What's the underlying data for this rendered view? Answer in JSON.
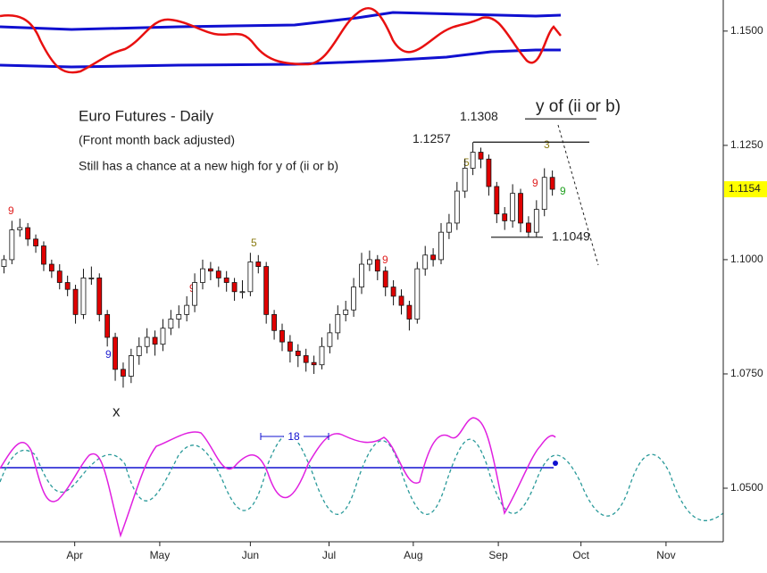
{
  "chart_data": {
    "type": "candlestick",
    "title": "Euro Futures - Daily",
    "subtitle": "(Front month back adjusted)",
    "note": "Still has a chance at a new high for y of (ii or b)",
    "wave_labels": [
      "y of (ii or b)",
      "x"
    ],
    "counts": [
      "9",
      "5",
      "9",
      "9",
      "9",
      "5",
      "3",
      "9",
      "9"
    ],
    "cycle_label": "18",
    "levels": [
      1.1308,
      1.1257,
      1.1049
    ],
    "last_price": 1.1154,
    "ylim": [
      1.0377,
      1.1568
    ],
    "yticks": [
      {
        "value": 1.05,
        "label": "1.0500"
      },
      {
        "value": 1.075,
        "label": "1.0750"
      },
      {
        "value": 1.1,
        "label": "1.1000"
      },
      {
        "value": 1.125,
        "label": "1.1250"
      },
      {
        "value": 1.15,
        "label": "1.1500"
      }
    ],
    "xlim": [
      -0.5,
      90.5
    ],
    "xticks": [
      {
        "value": 8.9,
        "label": "Apr"
      },
      {
        "value": 19.6,
        "label": "May"
      },
      {
        "value": 31,
        "label": "Jun"
      },
      {
        "value": 40.9,
        "label": "Jul"
      },
      {
        "value": 51.5,
        "label": "Aug"
      },
      {
        "value": 62.2,
        "label": "Sep"
      },
      {
        "value": 72.6,
        "label": "Oct"
      },
      {
        "value": 83.3,
        "label": "Nov"
      }
    ],
    "up_color": "#ffffff",
    "down_color": "#e00000",
    "candles": [
      [
        1.0985,
        1.101,
        1.097,
        1.1
      ],
      [
        1.1,
        1.1085,
        1.099,
        1.1065
      ],
      [
        1.1065,
        1.109,
        1.105,
        1.107
      ],
      [
        1.107,
        1.108,
        1.103,
        1.1045
      ],
      [
        1.1045,
        1.1055,
        1.1015,
        1.103
      ],
      [
        1.103,
        1.104,
        1.0975,
        1.099
      ],
      [
        1.099,
        1.1,
        1.096,
        1.0975
      ],
      [
        1.0975,
        1.099,
        1.0935,
        1.095
      ],
      [
        1.095,
        1.0965,
        1.092,
        1.0935
      ],
      [
        1.0935,
        1.0945,
        1.086,
        1.088
      ],
      [
        1.088,
        1.098,
        1.087,
        1.096
      ],
      [
        1.096,
        1.0985,
        1.0945,
        1.096
      ],
      [
        1.096,
        1.097,
        1.0865,
        1.088
      ],
      [
        1.088,
        1.089,
        1.081,
        1.083
      ],
      [
        1.083,
        1.084,
        1.0735,
        1.076
      ],
      [
        1.076,
        1.0775,
        1.072,
        1.0745
      ],
      [
        1.0745,
        1.0805,
        1.073,
        1.079
      ],
      [
        1.079,
        1.083,
        1.077,
        1.081
      ],
      [
        1.081,
        1.085,
        1.0795,
        1.083
      ],
      [
        1.083,
        1.0845,
        1.079,
        1.0815
      ],
      [
        1.0815,
        1.087,
        1.08,
        1.085
      ],
      [
        1.085,
        1.089,
        1.0835,
        1.087
      ],
      [
        1.087,
        1.09,
        1.085,
        1.088
      ],
      [
        1.088,
        1.092,
        1.0865,
        1.09
      ],
      [
        1.09,
        1.097,
        1.0885,
        1.095
      ],
      [
        1.095,
        1.1,
        1.0935,
        1.098
      ],
      [
        1.098,
        1.0995,
        1.0955,
        1.0975
      ],
      [
        1.0975,
        1.0985,
        1.094,
        1.096
      ],
      [
        1.096,
        1.0975,
        1.093,
        1.095
      ],
      [
        1.095,
        1.096,
        1.091,
        1.093
      ],
      [
        1.093,
        1.0955,
        1.0915,
        1.093
      ],
      [
        1.093,
        1.1015,
        1.092,
        1.0995
      ],
      [
        1.0995,
        1.101,
        1.097,
        1.0985
      ],
      [
        1.0985,
        1.0995,
        1.086,
        1.088
      ],
      [
        1.088,
        1.089,
        1.0825,
        1.0845
      ],
      [
        1.0845,
        1.086,
        1.08,
        1.082
      ],
      [
        1.082,
        1.0835,
        1.0775,
        1.08
      ],
      [
        1.08,
        1.0815,
        1.0765,
        1.079
      ],
      [
        1.079,
        1.0805,
        1.0755,
        1.0775
      ],
      [
        1.0775,
        1.079,
        1.075,
        1.077
      ],
      [
        1.077,
        1.083,
        1.076,
        1.081
      ],
      [
        1.081,
        1.086,
        1.0795,
        1.084
      ],
      [
        1.084,
        1.09,
        1.0825,
        1.088
      ],
      [
        1.088,
        1.091,
        1.0865,
        1.089
      ],
      [
        1.089,
        1.096,
        1.0875,
        1.094
      ],
      [
        1.094,
        1.1015,
        1.0925,
        1.099
      ],
      [
        1.099,
        1.102,
        1.0975,
        1.1
      ],
      [
        1.1,
        1.101,
        1.0955,
        1.0975
      ],
      [
        1.0975,
        1.0985,
        1.092,
        1.094
      ],
      [
        1.094,
        1.0955,
        1.09,
        1.092
      ],
      [
        1.092,
        1.0935,
        1.088,
        1.09
      ],
      [
        1.09,
        1.091,
        1.0845,
        1.087
      ],
      [
        1.087,
        1.0995,
        1.086,
        1.098
      ],
      [
        1.098,
        1.103,
        1.0965,
        1.101
      ],
      [
        1.101,
        1.1025,
        1.0985,
        1.1
      ],
      [
        1.1,
        1.108,
        1.099,
        1.106
      ],
      [
        1.106,
        1.11,
        1.1045,
        1.108
      ],
      [
        1.108,
        1.117,
        1.1065,
        1.115
      ],
      [
        1.115,
        1.122,
        1.1135,
        1.12
      ],
      [
        1.12,
        1.1257,
        1.1185,
        1.1235
      ],
      [
        1.1235,
        1.1245,
        1.12,
        1.122
      ],
      [
        1.122,
        1.123,
        1.114,
        1.116
      ],
      [
        1.116,
        1.117,
        1.108,
        1.11
      ],
      [
        1.11,
        1.1115,
        1.1065,
        1.1085
      ],
      [
        1.1085,
        1.1165,
        1.107,
        1.1145
      ],
      [
        1.1145,
        1.1155,
        1.106,
        1.108
      ],
      [
        1.108,
        1.1095,
        1.1049,
        1.106
      ],
      [
        1.106,
        1.113,
        1.105,
        1.111
      ],
      [
        1.111,
        1.12,
        1.1095,
        1.118
      ],
      [
        1.118,
        1.1195,
        1.114,
        1.1154
      ]
    ]
  }
}
